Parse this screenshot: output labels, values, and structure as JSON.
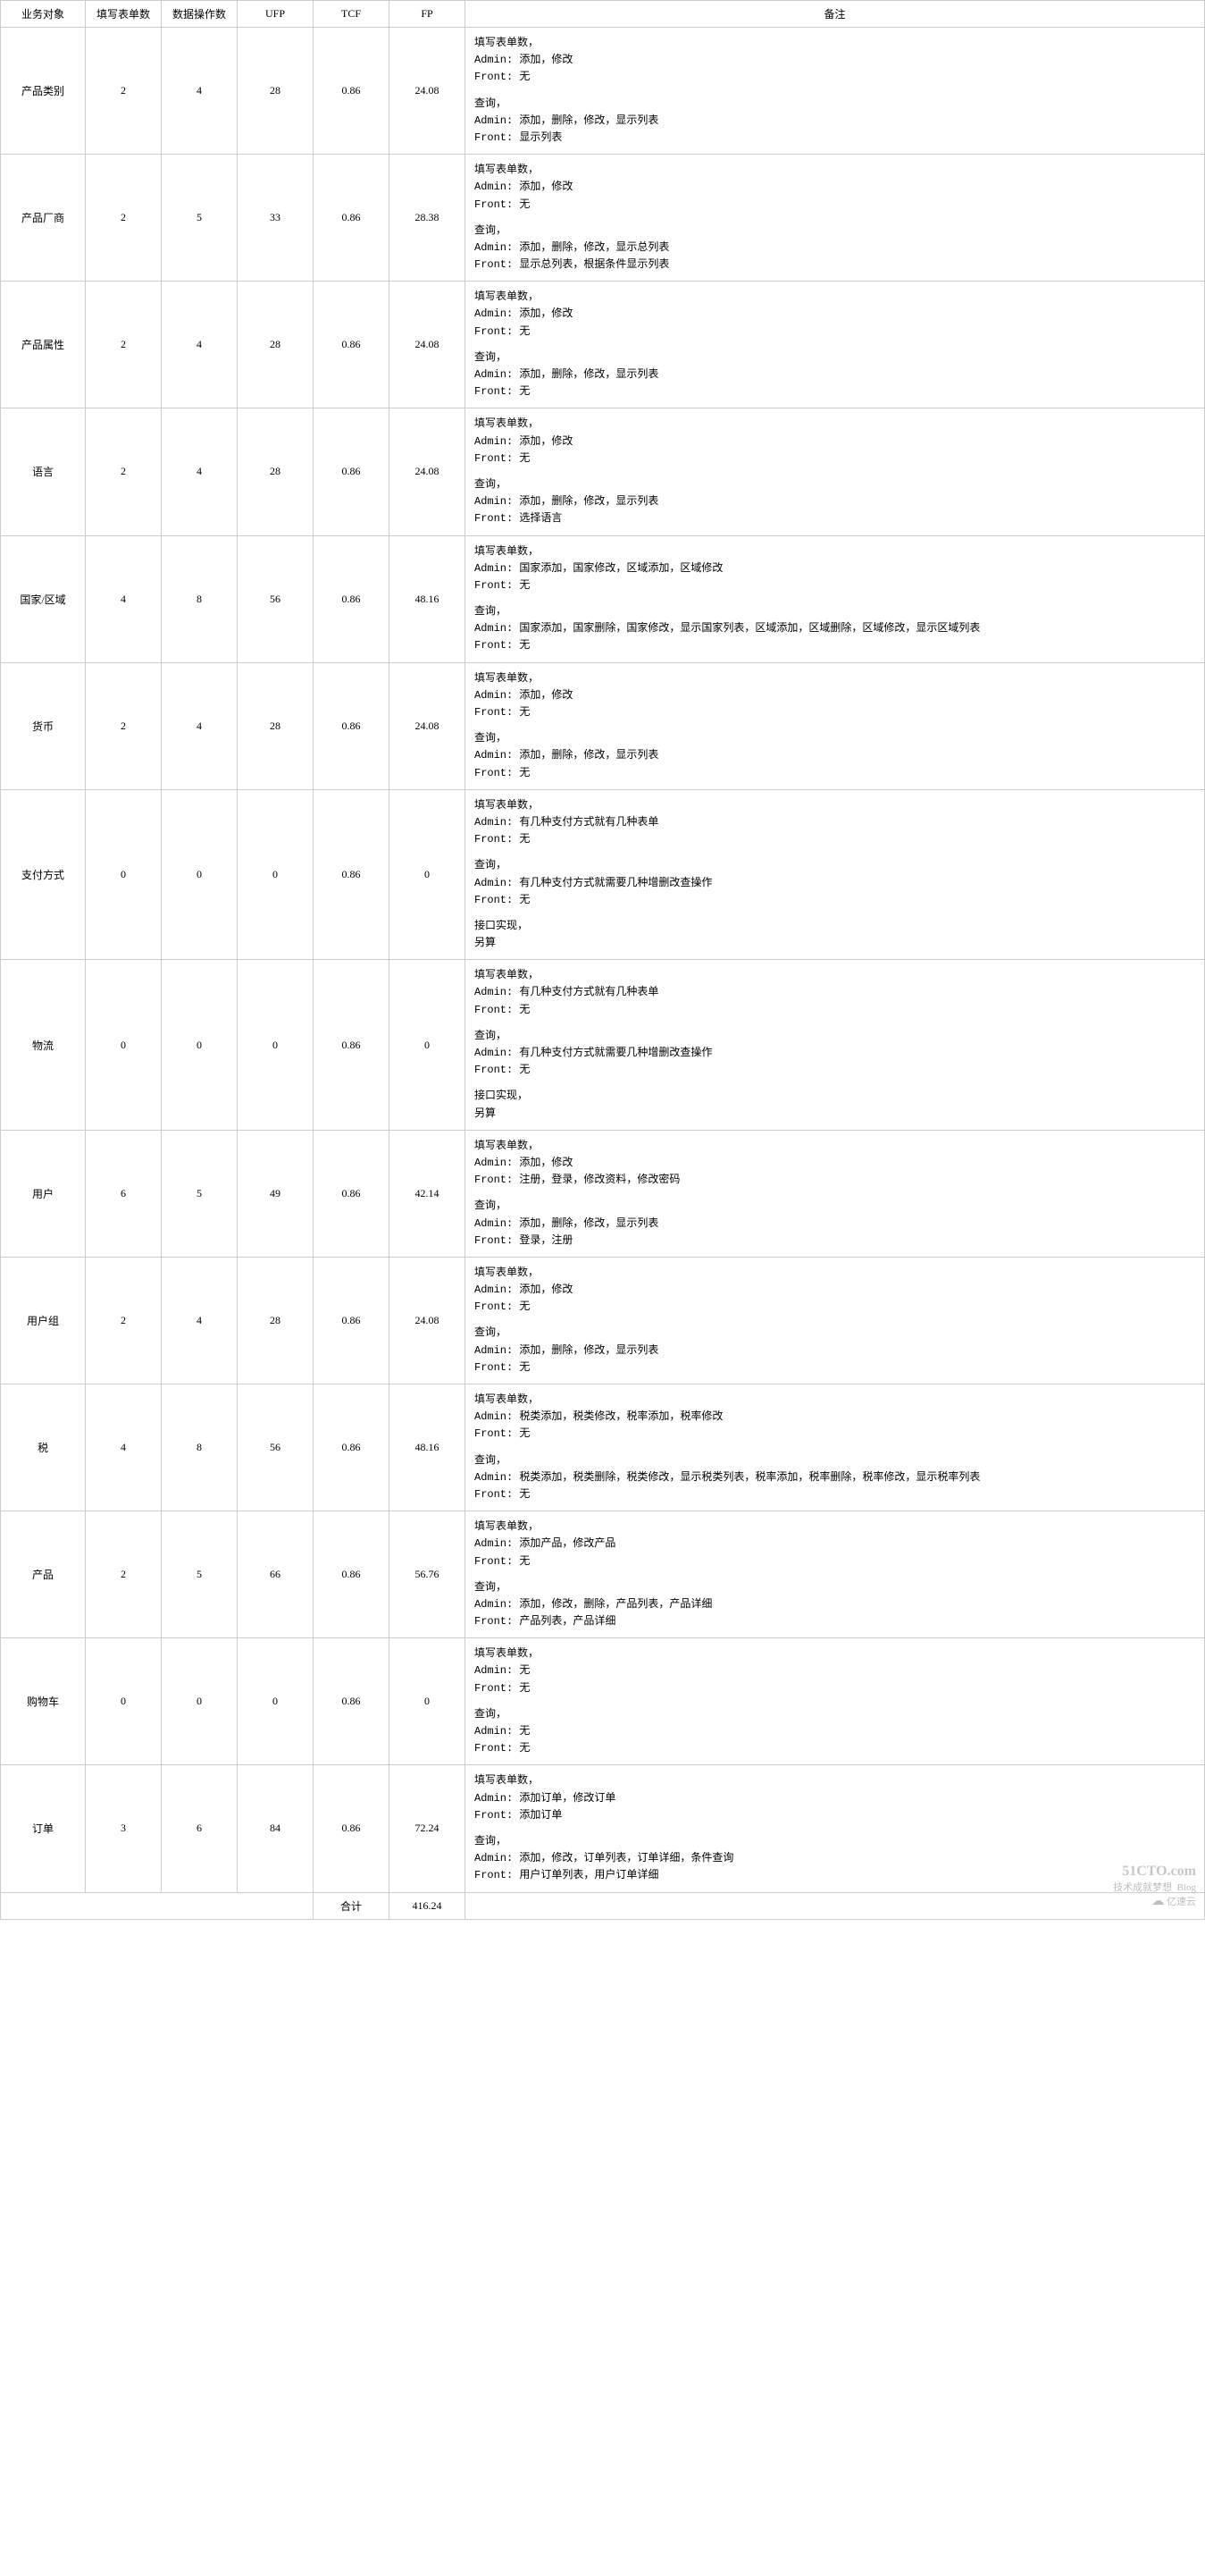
{
  "table": {
    "headers": {
      "obj": "业务对象",
      "form": "填写表单数",
      "data": "数据操作数",
      "ufp": "UFP",
      "tcf": "TCF",
      "fp": "FP",
      "rem": "备注"
    },
    "rows": [
      {
        "obj": "产品类别",
        "form": "2",
        "data": "4",
        "ufp": "28",
        "tcf": "0.86",
        "fp": "24.08",
        "remark": [
          "填写表单数，\nAdmin: 添加，修改\nFront: 无",
          "查询，\nAdmin: 添加，删除，修改，显示列表\nFront: 显示列表"
        ]
      },
      {
        "obj": "产品厂商",
        "form": "2",
        "data": "5",
        "ufp": "33",
        "tcf": "0.86",
        "fp": "28.38",
        "remark": [
          "填写表单数，\nAdmin: 添加，修改\nFront: 无",
          "查询，\nAdmin: 添加，删除，修改，显示总列表\nFront: 显示总列表，根据条件显示列表"
        ]
      },
      {
        "obj": "产品属性",
        "form": "2",
        "data": "4",
        "ufp": "28",
        "tcf": "0.86",
        "fp": "24.08",
        "remark": [
          "填写表单数，\nAdmin: 添加，修改\nFront: 无",
          "查询，\nAdmin: 添加，删除，修改，显示列表\nFront: 无"
        ]
      },
      {
        "obj": "语言",
        "form": "2",
        "data": "4",
        "ufp": "28",
        "tcf": "0.86",
        "fp": "24.08",
        "remark": [
          "填写表单数，\nAdmin: 添加，修改\nFront: 无",
          "查询，\nAdmin: 添加，删除，修改，显示列表\nFront: 选择语言"
        ]
      },
      {
        "obj": "国家/区域",
        "form": "4",
        "data": "8",
        "ufp": "56",
        "tcf": "0.86",
        "fp": "48.16",
        "remark": [
          "填写表单数，\nAdmin: 国家添加，国家修改，区域添加，区域修改\nFront: 无",
          "查询，\nAdmin: 国家添加，国家删除，国家修改，显示国家列表，区域添加，区域删除，区域修改，显示区域列表\nFront: 无"
        ]
      },
      {
        "obj": "货币",
        "form": "2",
        "data": "4",
        "ufp": "28",
        "tcf": "0.86",
        "fp": "24.08",
        "remark": [
          "填写表单数，\nAdmin: 添加，修改\nFront: 无",
          "查询，\nAdmin: 添加，删除，修改，显示列表\nFront: 无"
        ]
      },
      {
        "obj": "支付方式",
        "form": "0",
        "data": "0",
        "ufp": "0",
        "tcf": "0.86",
        "fp": "0",
        "remark": [
          "填写表单数，\nAdmin: 有几种支付方式就有几种表单\nFront: 无",
          "查询，\nAdmin: 有几种支付方式就需要几种增删改查操作\nFront: 无",
          "接口实现，\n另算"
        ]
      },
      {
        "obj": "物流",
        "form": "0",
        "data": "0",
        "ufp": "0",
        "tcf": "0.86",
        "fp": "0",
        "remark": [
          "填写表单数，\nAdmin: 有几种支付方式就有几种表单\nFront: 无",
          "查询，\nAdmin: 有几种支付方式就需要几种增删改查操作\nFront: 无",
          "接口实现，\n另算"
        ]
      },
      {
        "obj": "用户",
        "form": "6",
        "data": "5",
        "ufp": "49",
        "tcf": "0.86",
        "fp": "42.14",
        "remark": [
          "填写表单数，\nAdmin: 添加，修改\nFront: 注册，登录，修改资料，修改密码",
          "查询，\nAdmin: 添加，删除，修改，显示列表\nFront: 登录，注册"
        ]
      },
      {
        "obj": "用户组",
        "form": "2",
        "data": "4",
        "ufp": "28",
        "tcf": "0.86",
        "fp": "24.08",
        "remark": [
          "填写表单数，\nAdmin: 添加，修改\nFront: 无",
          "查询，\nAdmin: 添加，删除，修改，显示列表\nFront: 无"
        ]
      },
      {
        "obj": "税",
        "form": "4",
        "data": "8",
        "ufp": "56",
        "tcf": "0.86",
        "fp": "48.16",
        "remark": [
          "填写表单数，\nAdmin: 税类添加，税类修改，税率添加，税率修改\nFront: 无",
          "查询，\nAdmin: 税类添加，税类删除，税类修改，显示税类列表，税率添加，税率删除，税率修改，显示税率列表\nFront: 无"
        ]
      },
      {
        "obj": "产品",
        "form": "2",
        "data": "5",
        "ufp": "66",
        "tcf": "0.86",
        "fp": "56.76",
        "remark": [
          "填写表单数，\nAdmin: 添加产品，修改产品\nFront: 无",
          "查询，\nAdmin: 添加，修改，删除，产品列表，产品详细\nFront: 产品列表，产品详细"
        ]
      },
      {
        "obj": "购物车",
        "form": "0",
        "data": "0",
        "ufp": "0",
        "tcf": "0.86",
        "fp": "0",
        "remark": [
          "填写表单数，\nAdmin: 无\nFront: 无",
          "查询，\nAdmin: 无\nFront: 无"
        ]
      },
      {
        "obj": "订单",
        "form": "3",
        "data": "6",
        "ufp": "84",
        "tcf": "0.86",
        "fp": "72.24",
        "remark": [
          "填写表单数，\nAdmin: 添加订单，修改订单\nFront: 添加订单",
          "查询，\nAdmin: 添加，修改，订单列表，订单详细，条件查询\nFront: 用户订单列表，用户订单详细"
        ]
      }
    ],
    "footer": {
      "label": "合计",
      "fp_total": "416.24"
    }
  },
  "watermark": {
    "brand": "51CTO.com",
    "sub1": "技术成就梦想",
    "sub2": "Blog",
    "right": "亿速云"
  }
}
